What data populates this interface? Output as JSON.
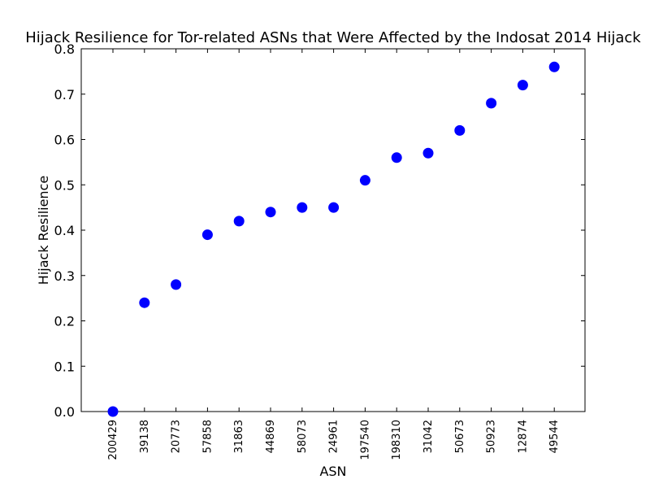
{
  "chart_data": {
    "type": "scatter",
    "title": "Hijack Resilience for Tor-related ASNs that Were Affected by the Indosat 2014 Hijack",
    "xlabel": "ASN",
    "ylabel": "Hijack Resilience",
    "categories": [
      "200429",
      "39138",
      "20773",
      "57858",
      "31863",
      "44869",
      "58073",
      "24961",
      "197540",
      "198310",
      "31042",
      "50673",
      "50923",
      "12874",
      "49544"
    ],
    "values": [
      0.0,
      0.24,
      0.28,
      0.39,
      0.42,
      0.44,
      0.45,
      0.45,
      0.51,
      0.56,
      0.57,
      0.62,
      0.68,
      0.72,
      0.76
    ],
    "ylim": [
      0.0,
      0.8
    ],
    "yticks": [
      "0.0",
      "0.1",
      "0.2",
      "0.3",
      "0.4",
      "0.5",
      "0.6",
      "0.7",
      "0.8"
    ],
    "grid": false,
    "marker_color": "#0000ff"
  }
}
